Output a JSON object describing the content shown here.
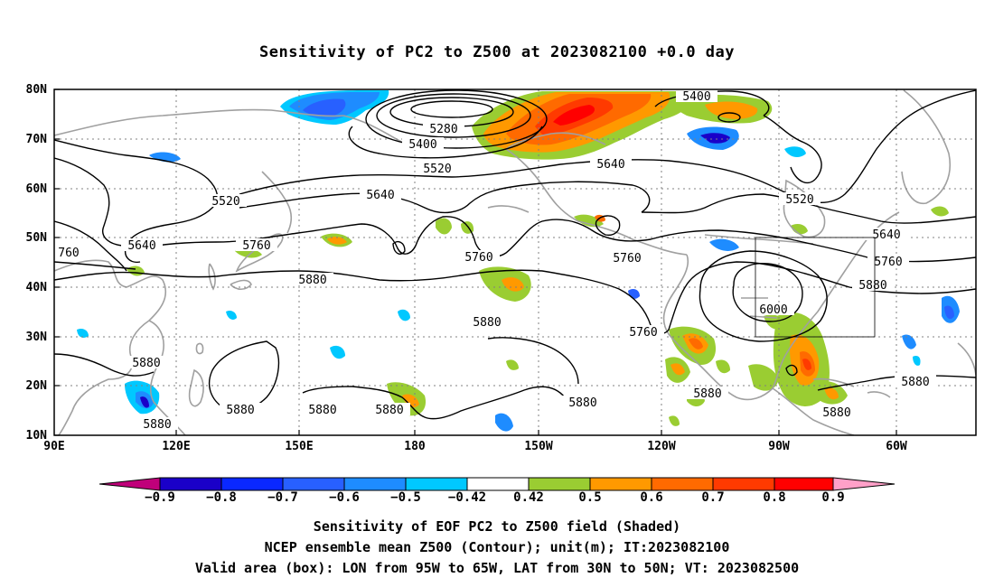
{
  "title": "Sensitivity of PC2 to Z500 at 2023082100 +0.0 day",
  "lat_labels": [
    "80N",
    "70N",
    "60N",
    "50N",
    "40N",
    "30N",
    "20N",
    "10N"
  ],
  "lon_labels": [
    "90E",
    "120E",
    "150E",
    "180",
    "150W",
    "120W",
    "90W",
    "60W"
  ],
  "contour_labels": [
    "5280",
    "5400",
    "5400",
    "5520",
    "5520",
    "5520",
    "5640",
    "5640",
    "5640",
    "5640",
    "5760",
    "5760",
    "5760",
    "5760",
    "5760",
    "760",
    "5880",
    "5880",
    "5880",
    "5880",
    "5880",
    "5880",
    "5880",
    "5880",
    "5880",
    "5880",
    "5880",
    "5880",
    "6000"
  ],
  "colorbar": {
    "colors": [
      "#c0007a",
      "#1a00c8",
      "#0a28ff",
      "#2860ff",
      "#1e8cff",
      "#00c8ff",
      "#ffffff",
      "#9acd32",
      "#ff9900",
      "#ff6a00",
      "#ff3a00",
      "#ff0000",
      "#ffa0c8"
    ],
    "labels": [
      "−0.9",
      "−0.8",
      "−0.7",
      "−0.6",
      "−0.5",
      "−0.42",
      "0.42",
      "0.5",
      "0.6",
      "0.7",
      "0.8",
      "0.9"
    ]
  },
  "captions": [
    "Sensitivity of EOF PC2 to Z500 field (Shaded)",
    "NCEP ensemble mean Z500 (Contour); unit(m); IT:2023082100",
    "Valid area (box): LON from 95W to 65W, LAT from 30N to 50N; VT: 2023082500"
  ]
}
